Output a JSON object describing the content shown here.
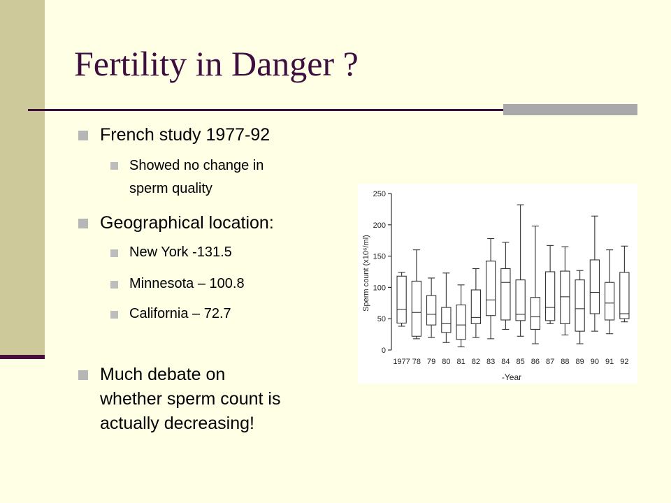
{
  "title": "Fertility in Danger ?",
  "bullets": {
    "french_study": "French study 1977-92",
    "no_change_line1": "Showed no change in",
    "no_change_line2": "sperm quality",
    "geo": "Geographical location:",
    "ny": "New York -131.5",
    "mn": "Minnesota – 100.8",
    "ca": "California – 72.7",
    "debate_line1": "Much debate on",
    "debate_line2": "whether sperm count is",
    "debate_line3": "actually decreasing!"
  },
  "colors": {
    "background": "#FFFFE6",
    "title": "#3D0E3E",
    "left_bar": "#CDC99A",
    "bullet": "#B6B6B6"
  },
  "chart_data": {
    "type": "boxplot",
    "xlabel": "-Year",
    "ylabel": "Sperm count (x10⁶/ml)",
    "ylim": [
      0,
      250
    ],
    "yticks": [
      "0",
      "50",
      "100",
      "150",
      "200",
      "250"
    ],
    "categories": [
      "1977",
      "78",
      "79",
      "80",
      "81",
      "82",
      "83",
      "84",
      "85",
      "86",
      "87",
      "88",
      "89",
      "90",
      "91",
      "92"
    ],
    "boxes": [
      {
        "min": 38,
        "q1": 43,
        "median": 65,
        "q3": 118,
        "max": 124
      },
      {
        "min": 18,
        "q1": 22,
        "median": 60,
        "q3": 110,
        "max": 160
      },
      {
        "min": 20,
        "q1": 40,
        "median": 57,
        "q3": 87,
        "max": 115
      },
      {
        "min": 12,
        "q1": 28,
        "median": 42,
        "q3": 68,
        "max": 123
      },
      {
        "min": 5,
        "q1": 17,
        "median": 40,
        "q3": 72,
        "max": 104
      },
      {
        "min": 20,
        "q1": 42,
        "median": 52,
        "q3": 96,
        "max": 130
      },
      {
        "min": 18,
        "q1": 55,
        "median": 80,
        "q3": 142,
        "max": 178
      },
      {
        "min": 33,
        "q1": 48,
        "median": 108,
        "q3": 130,
        "max": 172
      },
      {
        "min": 22,
        "q1": 47,
        "median": 57,
        "q3": 112,
        "max": 232
      },
      {
        "min": 10,
        "q1": 33,
        "median": 53,
        "q3": 84,
        "max": 198
      },
      {
        "min": 42,
        "q1": 47,
        "median": 68,
        "q3": 125,
        "max": 167
      },
      {
        "min": 24,
        "q1": 42,
        "median": 85,
        "q3": 126,
        "max": 165
      },
      {
        "min": 10,
        "q1": 30,
        "median": 66,
        "q3": 112,
        "max": 127
      },
      {
        "min": 30,
        "q1": 58,
        "median": 92,
        "q3": 144,
        "max": 214
      },
      {
        "min": 26,
        "q1": 48,
        "median": 75,
        "q3": 108,
        "max": 160
      },
      {
        "min": 45,
        "q1": 50,
        "median": 58,
        "q3": 124,
        "max": 166
      }
    ]
  }
}
